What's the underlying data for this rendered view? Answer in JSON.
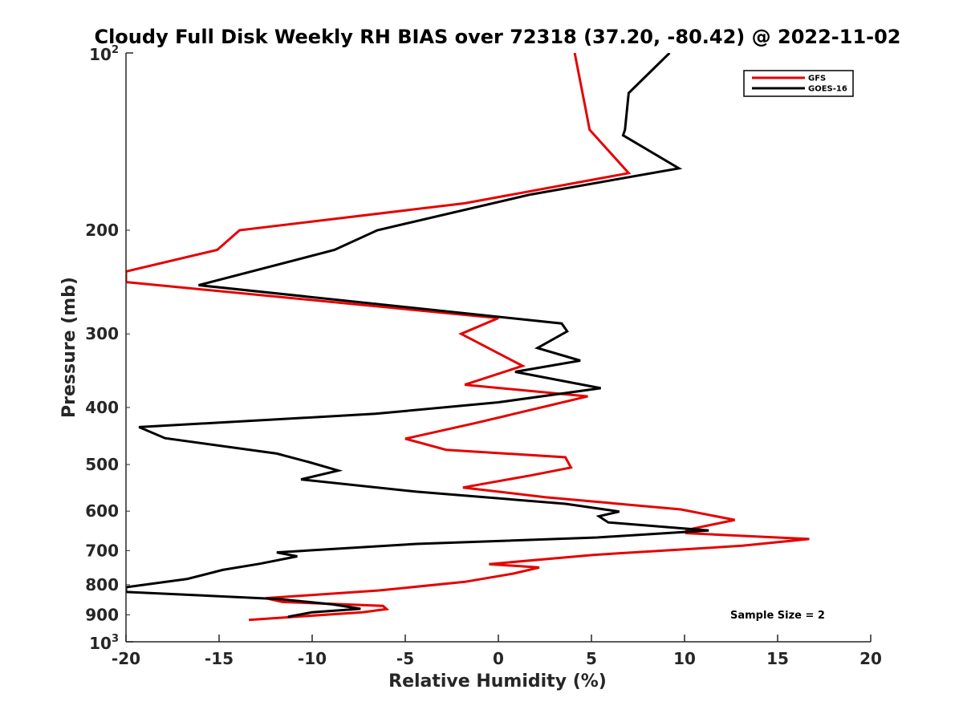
{
  "chart_data": {
    "type": "line",
    "title": "Cloudy Full Disk Weekly RH BIAS over 72318 (37.20, -80.42) @ 2022-11-02",
    "xlabel": "Relative Humidity (%)",
    "ylabel": "Pressure (mb)",
    "xlim": [
      -20,
      20
    ],
    "ylim": [
      100,
      1000
    ],
    "yscale": "log",
    "y_reversed": true,
    "x_ticks": [
      -20,
      -15,
      -10,
      -5,
      0,
      5,
      10,
      15,
      20
    ],
    "x_tick_labels": [
      "-20",
      "-15",
      "-10",
      "-5",
      "0",
      "5",
      "10",
      "15",
      "20"
    ],
    "y_ticks": [
      200,
      300,
      400,
      500,
      600,
      700,
      800,
      900
    ],
    "y_tick_labels": [
      "200",
      "300",
      "400",
      "500",
      "600",
      "700",
      "800",
      "900"
    ],
    "y_top_label": {
      "base": "10",
      "exp": "2"
    },
    "y_bottom_label": {
      "base": "10",
      "exp": "3"
    },
    "legend_position": "top-right",
    "annotation": "Sample Size = 2",
    "series": [
      {
        "name": "GFS",
        "color": "#e60000",
        "points": [
          [
            4.1,
            100
          ],
          [
            4.7,
            125
          ],
          [
            4.9,
            135
          ],
          [
            7.0,
            160
          ],
          [
            -1.8,
            180
          ],
          [
            -13.9,
            200
          ],
          [
            -15.1,
            216
          ],
          [
            -20.0,
            235
          ],
          [
            -20.0,
            245
          ],
          [
            0.0,
            282
          ],
          [
            -2.0,
            300
          ],
          [
            1.3,
            340
          ],
          [
            -1.8,
            366
          ],
          [
            4.8,
            383
          ],
          [
            -1.2,
            425
          ],
          [
            -5.0,
            452
          ],
          [
            -2.8,
            472
          ],
          [
            3.6,
            486
          ],
          [
            3.9,
            506
          ],
          [
            1.7,
            522
          ],
          [
            -1.9,
            547
          ],
          [
            2.5,
            568
          ],
          [
            9.8,
            596
          ],
          [
            12.7,
            621
          ],
          [
            10.1,
            646
          ],
          [
            10.1,
            654
          ],
          [
            16.7,
            669
          ],
          [
            13.1,
            687
          ],
          [
            5.1,
            712
          ],
          [
            -0.5,
            738
          ],
          [
            2.2,
            748
          ],
          [
            0.8,
            766
          ],
          [
            -1.8,
            791
          ],
          [
            -6.4,
            818
          ],
          [
            -12.5,
            843
          ],
          [
            -11.6,
            856
          ],
          [
            -6.2,
            869
          ],
          [
            -6.0,
            880
          ],
          [
            -7.3,
            891
          ],
          [
            -13.4,
            918
          ]
        ]
      },
      {
        "name": "GOES-16",
        "color": "#000000",
        "points": [
          [
            9.2,
            100
          ],
          [
            7.0,
            117
          ],
          [
            6.8,
            135
          ],
          [
            6.7,
            138
          ],
          [
            9.7,
            157
          ],
          [
            1.7,
            174
          ],
          [
            -6.5,
            200
          ],
          [
            -8.8,
            216
          ],
          [
            -16.1,
            248
          ],
          [
            3.4,
            288
          ],
          [
            3.7,
            297
          ],
          [
            2.1,
            317
          ],
          [
            4.4,
            333
          ],
          [
            0.9,
            348
          ],
          [
            5.5,
            371
          ],
          [
            0.0,
            392
          ],
          [
            -6.6,
            410
          ],
          [
            -19.3,
            432
          ],
          [
            -17.9,
            451
          ],
          [
            -11.9,
            479
          ],
          [
            -10.1,
            496
          ],
          [
            -8.6,
            512
          ],
          [
            -10.6,
            530
          ],
          [
            -4.4,
            556
          ],
          [
            3.6,
            583
          ],
          [
            6.5,
            601
          ],
          [
            5.4,
            612
          ],
          [
            5.9,
            627
          ],
          [
            11.3,
            647
          ],
          [
            5.3,
            665
          ],
          [
            -4.4,
            682
          ],
          [
            -11.9,
            705
          ],
          [
            -10.8,
            716
          ],
          [
            -12.8,
            737
          ],
          [
            -14.8,
            755
          ],
          [
            -16.7,
            782
          ],
          [
            -20.0,
            808
          ],
          [
            -20.0,
            823
          ],
          [
            -11.8,
            846
          ],
          [
            -8.9,
            864
          ],
          [
            -7.4,
            879
          ],
          [
            -10.0,
            891
          ],
          [
            -11.3,
            907
          ]
        ]
      }
    ]
  }
}
